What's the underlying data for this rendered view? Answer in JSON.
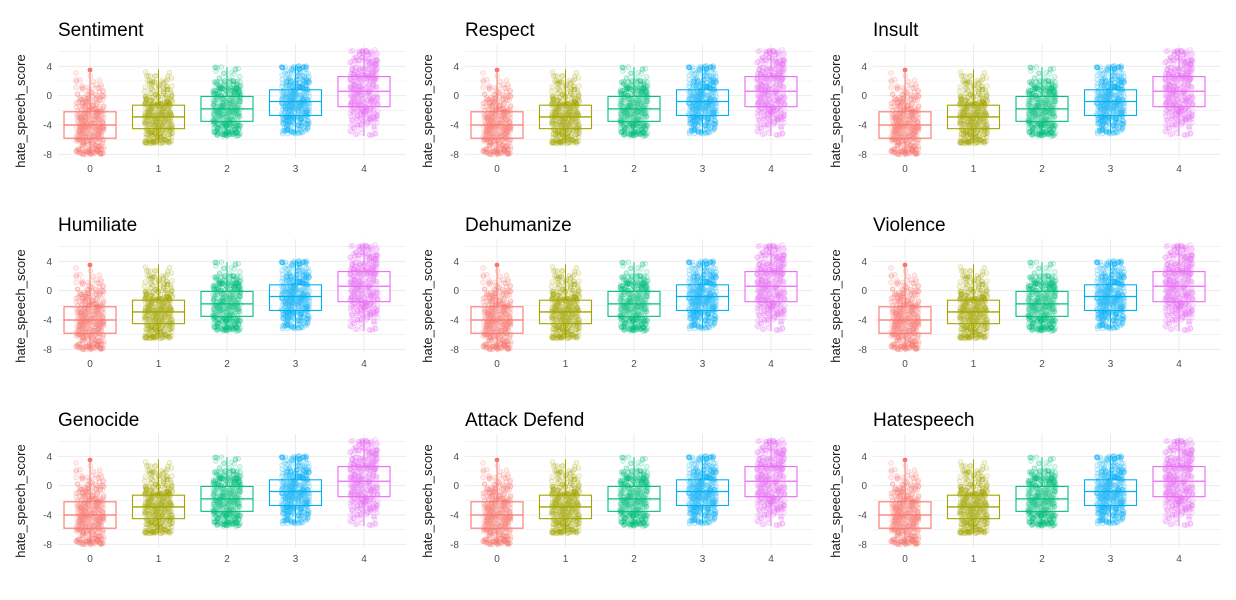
{
  "colors": {
    "0": "#F8766D",
    "1": "#A3A500",
    "2": "#00BF7D",
    "3": "#00B0F6",
    "4": "#E76BF3"
  },
  "chart_data": [
    {
      "type": "box+jitter",
      "title": "Sentiment",
      "ylabel": "hate_speech_score",
      "categories": [
        "0",
        "1",
        "2",
        "3",
        "4"
      ],
      "yticks": [
        "4",
        "0",
        "-4",
        "-8"
      ],
      "ylim": [
        -8.5,
        6.5
      ],
      "boxes": [
        {
          "category": "0",
          "q1": -5.8,
          "median": -4.0,
          "q3": -2.2,
          "whisker_low": -8.0,
          "whisker_high": 3.5,
          "outlier_high": 3.5
        },
        {
          "category": "1",
          "q1": -4.5,
          "median": -2.9,
          "q3": -1.3,
          "whisker_low": -6.5,
          "whisker_high": 3.6
        },
        {
          "category": "2",
          "q1": -3.5,
          "median": -1.8,
          "q3": -0.1,
          "whisker_low": -5.5,
          "whisker_high": 3.9
        },
        {
          "category": "3",
          "q1": -2.7,
          "median": -0.8,
          "q3": 0.8,
          "whisker_low": -5.2,
          "whisker_high": 4.1
        },
        {
          "category": "4",
          "q1": -1.5,
          "median": 0.6,
          "q3": 2.6,
          "whisker_low": -5.5,
          "whisker_high": 6.3
        }
      ]
    },
    {
      "type": "box+jitter",
      "title": "Respect",
      "ylabel": "hate_speech_score",
      "categories": [
        "0",
        "1",
        "2",
        "3",
        "4"
      ],
      "yticks": [
        "4",
        "0",
        "-4",
        "-8"
      ],
      "ylim": [
        -8.5,
        6.5
      ],
      "boxes": [
        {
          "category": "0",
          "q1": -5.8,
          "median": -4.0,
          "q3": -2.2,
          "whisker_low": -8.0,
          "whisker_high": 3.5,
          "outlier_high": 3.5
        },
        {
          "category": "1",
          "q1": -4.5,
          "median": -2.9,
          "q3": -1.3,
          "whisker_low": -6.5,
          "whisker_high": 3.6
        },
        {
          "category": "2",
          "q1": -3.5,
          "median": -1.8,
          "q3": -0.1,
          "whisker_low": -5.5,
          "whisker_high": 3.9
        },
        {
          "category": "3",
          "q1": -2.7,
          "median": -0.8,
          "q3": 0.8,
          "whisker_low": -5.2,
          "whisker_high": 4.1
        },
        {
          "category": "4",
          "q1": -1.5,
          "median": 0.6,
          "q3": 2.6,
          "whisker_low": -5.5,
          "whisker_high": 6.3
        }
      ]
    },
    {
      "type": "box+jitter",
      "title": "Insult",
      "ylabel": "hate_speech_score",
      "categories": [
        "0",
        "1",
        "2",
        "3",
        "4"
      ],
      "yticks": [
        "4",
        "0",
        "-4",
        "-8"
      ],
      "ylim": [
        -8.5,
        6.5
      ],
      "boxes": [
        {
          "category": "0",
          "q1": -5.8,
          "median": -4.0,
          "q3": -2.2,
          "whisker_low": -8.0,
          "whisker_high": 3.5,
          "outlier_high": 3.5
        },
        {
          "category": "1",
          "q1": -4.5,
          "median": -2.9,
          "q3": -1.3,
          "whisker_low": -6.5,
          "whisker_high": 3.6
        },
        {
          "category": "2",
          "q1": -3.5,
          "median": -1.8,
          "q3": -0.1,
          "whisker_low": -5.5,
          "whisker_high": 3.9
        },
        {
          "category": "3",
          "q1": -2.7,
          "median": -0.8,
          "q3": 0.8,
          "whisker_low": -5.2,
          "whisker_high": 4.1
        },
        {
          "category": "4",
          "q1": -1.5,
          "median": 0.6,
          "q3": 2.6,
          "whisker_low": -5.5,
          "whisker_high": 6.3
        }
      ]
    },
    {
      "type": "box+jitter",
      "title": "Humiliate",
      "ylabel": "hate_speech_score",
      "categories": [
        "0",
        "1",
        "2",
        "3",
        "4"
      ],
      "yticks": [
        "4",
        "0",
        "-4",
        "-8"
      ],
      "ylim": [
        -8.5,
        6.5
      ],
      "boxes": [
        {
          "category": "0",
          "q1": -5.8,
          "median": -4.0,
          "q3": -2.2,
          "whisker_low": -8.0,
          "whisker_high": 3.5,
          "outlier_high": 3.5
        },
        {
          "category": "1",
          "q1": -4.5,
          "median": -2.9,
          "q3": -1.3,
          "whisker_low": -6.5,
          "whisker_high": 3.6
        },
        {
          "category": "2",
          "q1": -3.5,
          "median": -1.8,
          "q3": -0.1,
          "whisker_low": -5.5,
          "whisker_high": 3.9
        },
        {
          "category": "3",
          "q1": -2.7,
          "median": -0.8,
          "q3": 0.8,
          "whisker_low": -5.2,
          "whisker_high": 4.1
        },
        {
          "category": "4",
          "q1": -1.5,
          "median": 0.6,
          "q3": 2.6,
          "whisker_low": -5.5,
          "whisker_high": 6.3
        }
      ]
    },
    {
      "type": "box+jitter",
      "title": "Dehumanize",
      "ylabel": "hate_speech_score",
      "categories": [
        "0",
        "1",
        "2",
        "3",
        "4"
      ],
      "yticks": [
        "4",
        "0",
        "-4",
        "-8"
      ],
      "ylim": [
        -8.5,
        6.5
      ],
      "boxes": [
        {
          "category": "0",
          "q1": -5.8,
          "median": -4.0,
          "q3": -2.2,
          "whisker_low": -8.0,
          "whisker_high": 3.5,
          "outlier_high": 3.5
        },
        {
          "category": "1",
          "q1": -4.5,
          "median": -2.9,
          "q3": -1.3,
          "whisker_low": -6.5,
          "whisker_high": 3.6
        },
        {
          "category": "2",
          "q1": -3.5,
          "median": -1.8,
          "q3": -0.1,
          "whisker_low": -5.5,
          "whisker_high": 3.9
        },
        {
          "category": "3",
          "q1": -2.7,
          "median": -0.8,
          "q3": 0.8,
          "whisker_low": -5.2,
          "whisker_high": 4.1
        },
        {
          "category": "4",
          "q1": -1.5,
          "median": 0.6,
          "q3": 2.6,
          "whisker_low": -5.5,
          "whisker_high": 6.3
        }
      ]
    },
    {
      "type": "box+jitter",
      "title": "Violence",
      "ylabel": "hate_speech_score",
      "categories": [
        "0",
        "1",
        "2",
        "3",
        "4"
      ],
      "yticks": [
        "4",
        "0",
        "-4",
        "-8"
      ],
      "ylim": [
        -8.5,
        6.5
      ],
      "boxes": [
        {
          "category": "0",
          "q1": -5.8,
          "median": -4.0,
          "q3": -2.2,
          "whisker_low": -8.0,
          "whisker_high": 3.5,
          "outlier_high": 3.5
        },
        {
          "category": "1",
          "q1": -4.5,
          "median": -2.9,
          "q3": -1.3,
          "whisker_low": -6.5,
          "whisker_high": 3.6
        },
        {
          "category": "2",
          "q1": -3.5,
          "median": -1.8,
          "q3": -0.1,
          "whisker_low": -5.5,
          "whisker_high": 3.9
        },
        {
          "category": "3",
          "q1": -2.7,
          "median": -0.8,
          "q3": 0.8,
          "whisker_low": -5.2,
          "whisker_high": 4.1
        },
        {
          "category": "4",
          "q1": -1.5,
          "median": 0.6,
          "q3": 2.6,
          "whisker_low": -5.5,
          "whisker_high": 6.3
        }
      ]
    },
    {
      "type": "box+jitter",
      "title": "Genocide",
      "ylabel": "hate_speech_score",
      "categories": [
        "0",
        "1",
        "2",
        "3",
        "4"
      ],
      "yticks": [
        "4",
        "0",
        "-4",
        "-8"
      ],
      "ylim": [
        -8.5,
        6.5
      ],
      "boxes": [
        {
          "category": "0",
          "q1": -5.8,
          "median": -4.0,
          "q3": -2.2,
          "whisker_low": -8.0,
          "whisker_high": 3.5,
          "outlier_high": 3.5
        },
        {
          "category": "1",
          "q1": -4.5,
          "median": -2.9,
          "q3": -1.3,
          "whisker_low": -6.5,
          "whisker_high": 3.6
        },
        {
          "category": "2",
          "q1": -3.5,
          "median": -1.8,
          "q3": -0.1,
          "whisker_low": -5.5,
          "whisker_high": 3.9
        },
        {
          "category": "3",
          "q1": -2.7,
          "median": -0.8,
          "q3": 0.8,
          "whisker_low": -5.2,
          "whisker_high": 4.1
        },
        {
          "category": "4",
          "q1": -1.5,
          "median": 0.6,
          "q3": 2.6,
          "whisker_low": -5.5,
          "whisker_high": 6.3
        }
      ]
    },
    {
      "type": "box+jitter",
      "title": "Attack Defend",
      "ylabel": "hate_speech_score",
      "categories": [
        "0",
        "1",
        "2",
        "3",
        "4"
      ],
      "yticks": [
        "4",
        "0",
        "-4",
        "-8"
      ],
      "ylim": [
        -8.5,
        6.5
      ],
      "boxes": [
        {
          "category": "0",
          "q1": -5.8,
          "median": -4.0,
          "q3": -2.2,
          "whisker_low": -8.0,
          "whisker_high": 3.5,
          "outlier_high": 3.5
        },
        {
          "category": "1",
          "q1": -4.5,
          "median": -2.9,
          "q3": -1.3,
          "whisker_low": -6.5,
          "whisker_high": 3.6
        },
        {
          "category": "2",
          "q1": -3.5,
          "median": -1.8,
          "q3": -0.1,
          "whisker_low": -5.5,
          "whisker_high": 3.9
        },
        {
          "category": "3",
          "q1": -2.7,
          "median": -0.8,
          "q3": 0.8,
          "whisker_low": -5.2,
          "whisker_high": 4.1
        },
        {
          "category": "4",
          "q1": -1.5,
          "median": 0.6,
          "q3": 2.6,
          "whisker_low": -5.5,
          "whisker_high": 6.3
        }
      ]
    },
    {
      "type": "box+jitter",
      "title": "Hatespeech",
      "ylabel": "hate_speech_score",
      "categories": [
        "0",
        "1",
        "2",
        "3",
        "4"
      ],
      "yticks": [
        "4",
        "0",
        "-4",
        "-8"
      ],
      "ylim": [
        -8.5,
        6.5
      ],
      "boxes": [
        {
          "category": "0",
          "q1": -5.8,
          "median": -4.0,
          "q3": -2.2,
          "whisker_low": -8.0,
          "whisker_high": 3.5,
          "outlier_high": 3.5
        },
        {
          "category": "1",
          "q1": -4.5,
          "median": -2.9,
          "q3": -1.3,
          "whisker_low": -6.5,
          "whisker_high": 3.6
        },
        {
          "category": "2",
          "q1": -3.5,
          "median": -1.8,
          "q3": -0.1,
          "whisker_low": -5.5,
          "whisker_high": 3.9
        },
        {
          "category": "3",
          "q1": -2.7,
          "median": -0.8,
          "q3": 0.8,
          "whisker_low": -5.2,
          "whisker_high": 4.1
        },
        {
          "category": "4",
          "q1": -1.5,
          "median": 0.6,
          "q3": 2.6,
          "whisker_low": -5.5,
          "whisker_high": 6.3
        }
      ]
    }
  ]
}
